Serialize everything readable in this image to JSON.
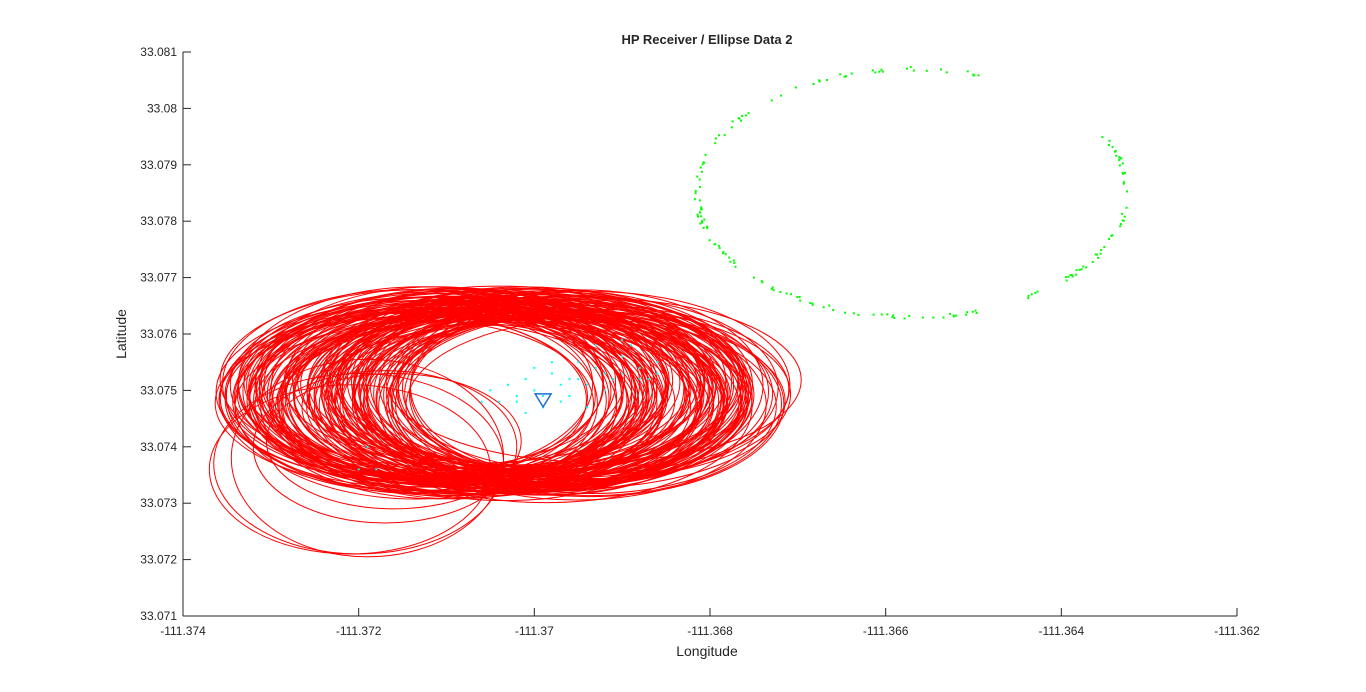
{
  "chart_data": {
    "type": "scatter",
    "title": "HP Receiver / Ellipse Data 2",
    "xlabel": "Longitude",
    "ylabel": "Latitude",
    "xlim": [
      -111.374,
      -111.362
    ],
    "ylim": [
      33.071,
      33.081
    ],
    "xticks": [
      "-111.374",
      "-111.372",
      "-111.37",
      "-111.368",
      "-111.366",
      "-111.364",
      "-111.362"
    ],
    "yticks": [
      "33.071",
      "33.072",
      "33.073",
      "33.074",
      "33.075",
      "33.076",
      "33.077",
      "33.078",
      "33.079",
      "33.08",
      "33.081"
    ],
    "grid": false,
    "colors": {
      "ellipses": "#ff0000",
      "green_points": "#00ff00",
      "cyan_points": "#00ffff",
      "receiver_marker": "#1a6fd1"
    },
    "ellipse_model": {
      "description_none": "",
      "main_cluster": {
        "center_range_x": [
          -111.3715,
          -111.3693
        ],
        "center_range_y": [
          33.0747,
          33.0752
        ],
        "a_range": [
          0.0019,
          0.0024
        ],
        "b_range": [
          0.00145,
          0.0017
        ],
        "count": 150
      },
      "left_group": [
        {
          "cx": -111.3719,
          "cy": 33.0738,
          "a": 0.00155,
          "b": 0.00175
        },
        {
          "cx": -111.372,
          "cy": 33.0737,
          "a": 0.00165,
          "b": 0.0016
        },
        {
          "cx": -111.3717,
          "cy": 33.074,
          "a": 0.0015,
          "b": 0.00135
        },
        {
          "cx": -111.3716,
          "cy": 33.0741,
          "a": 0.00145,
          "b": 0.0012
        },
        {
          "cx": -111.3721,
          "cy": 33.0736,
          "a": 0.0016,
          "b": 0.0015
        }
      ]
    },
    "green_ellipse_model": {
      "cx": -111.3657,
      "cy": 33.0785,
      "a": 0.00245,
      "b": 0.0022,
      "gap_start_deg": 28,
      "gap_end_deg": 68,
      "count": 190
    },
    "cyan_points": [
      [
        -111.3699,
        33.0749
      ],
      [
        -111.3697,
        33.0751
      ],
      [
        -111.3695,
        33.0752
      ],
      [
        -111.3702,
        33.0748
      ],
      [
        -111.37,
        33.075
      ],
      [
        -111.3698,
        33.0753
      ],
      [
        -111.3694,
        33.0751
      ],
      [
        -111.3692,
        33.075
      ],
      [
        -111.3696,
        33.0749
      ],
      [
        -111.3701,
        33.0752
      ],
      [
        -111.3703,
        33.0751
      ],
      [
        -111.3704,
        33.0748
      ],
      [
        -111.3693,
        33.0754
      ],
      [
        -111.3691,
        33.0752
      ],
      [
        -111.369,
        33.0756
      ],
      [
        -111.3689,
        33.0758
      ],
      [
        -111.3688,
        33.0754
      ],
      [
        -111.3687,
        33.0752
      ],
      [
        -111.3686,
        33.0755
      ],
      [
        -111.369,
        33.0753
      ],
      [
        -111.3695,
        33.0755
      ],
      [
        -111.3693,
        33.0758
      ],
      [
        -111.37,
        33.0754
      ],
      [
        -111.3698,
        33.0755
      ],
      [
        -111.3697,
        33.0748
      ],
      [
        -111.3699,
        33.0747
      ],
      [
        -111.3702,
        33.0749
      ],
      [
        -111.3705,
        33.075
      ],
      [
        -111.3706,
        33.0748
      ],
      [
        -111.3701,
        33.0746
      ],
      [
        -111.3694,
        33.0747
      ],
      [
        -111.3692,
        33.0753
      ],
      [
        -111.369,
        33.0759
      ],
      [
        -111.3686,
        33.0753
      ],
      [
        -111.3688,
        33.0752
      ],
      [
        -111.3696,
        33.0752
      ],
      [
        -111.372,
        33.0736
      ],
      [
        -111.3719,
        33.074
      ],
      [
        -111.3718,
        33.0736
      ]
    ],
    "receiver_marker": {
      "x": -111.3699,
      "y": 33.07485,
      "symbol": "triangle-down"
    }
  }
}
